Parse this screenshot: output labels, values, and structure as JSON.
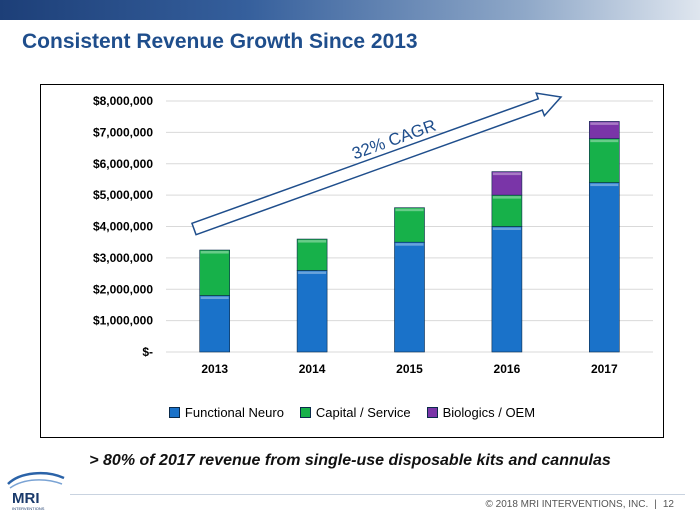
{
  "title": "Consistent Revenue Growth Since 2013",
  "tagline": "> 80% of 2017 revenue from single-use disposable kits and cannulas",
  "footer": {
    "copyright": "© 2018 MRI INTERVENTIONS, INC.",
    "separator": "|",
    "page": "12"
  },
  "logo": {
    "text": "MRI",
    "subtext": "INTERVENTIONS"
  },
  "annotation": "32% CAGR",
  "colors": {
    "functional": "#1a72c9",
    "capital": "#17b14a",
    "biologics": "#7a35a8",
    "title": "#1f4e8c",
    "arrow": "#1f4e8c"
  },
  "chart_data": {
    "type": "bar",
    "stacked": true,
    "categories": [
      "2013",
      "2014",
      "2015",
      "2016",
      "2017"
    ],
    "series": [
      {
        "name": "Functional Neuro",
        "color": "#1a72c9",
        "values": [
          1800000,
          2600000,
          3500000,
          4000000,
          5400000
        ]
      },
      {
        "name": "Capital / Service",
        "color": "#17b14a",
        "values": [
          1450000,
          1000000,
          1100000,
          1000000,
          1400000
        ]
      },
      {
        "name": "Biologics / OEM",
        "color": "#7a35a8",
        "values": [
          0,
          0,
          0,
          750000,
          550000
        ]
      }
    ],
    "ylim": [
      0,
      8000000
    ],
    "yticks": [
      0,
      1000000,
      2000000,
      3000000,
      4000000,
      5000000,
      6000000,
      7000000,
      8000000
    ],
    "ytick_labels": [
      "$-",
      "$1,000,000",
      "$2,000,000",
      "$3,000,000",
      "$4,000,000",
      "$5,000,000",
      "$6,000,000",
      "$7,000,000",
      "$8,000,000"
    ],
    "grid": true,
    "legend": "bottom",
    "annotation": "32% CAGR"
  }
}
